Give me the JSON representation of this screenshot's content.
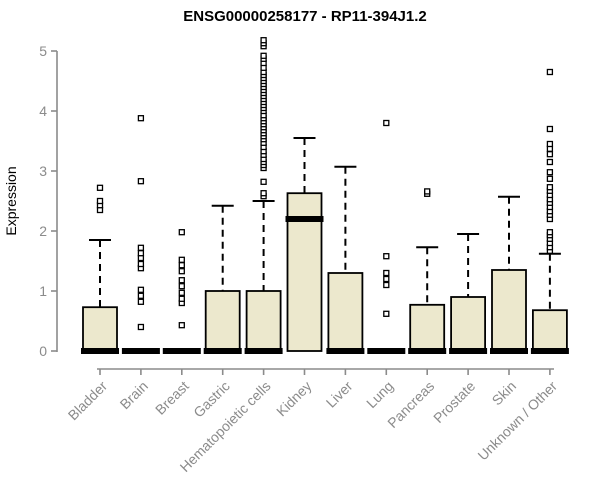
{
  "chart_data": {
    "type": "boxplot",
    "title": "ENSG00000258177 - RP11-394J1.2",
    "ylabel": "Expression",
    "xlabel": "",
    "ylim": [
      0,
      5
    ],
    "yticks": [
      0,
      1,
      2,
      3,
      4,
      5
    ],
    "grid": false,
    "legend": "none",
    "categories": [
      "Bladder",
      "Brain",
      "Breast",
      "Gastric",
      "Hematopoietic cells",
      "Kidney",
      "Liver",
      "Lung",
      "Pancreas",
      "Prostate",
      "Skin",
      "Unknown / Other"
    ],
    "series": [
      {
        "name": "Bladder",
        "q1": 0,
        "median": 0,
        "q3": 0.73,
        "whisker_low": 0,
        "whisker_high": 1.85,
        "outliers": [
          2.35,
          2.43,
          2.5,
          2.72
        ]
      },
      {
        "name": "Brain",
        "q1": 0,
        "median": 0,
        "q3": 0,
        "whisker_low": 0,
        "whisker_high": 0,
        "outliers": [
          0.4,
          0.82,
          0.92,
          1.02,
          1.38,
          1.45,
          1.55,
          1.63,
          1.72,
          2.83,
          3.88
        ]
      },
      {
        "name": "Breast",
        "q1": 0,
        "median": 0,
        "q3": 0,
        "whisker_low": 0,
        "whisker_high": 0,
        "outliers": [
          0.43,
          0.8,
          0.87,
          0.97,
          1.08,
          1.18,
          1.33,
          1.43,
          1.52,
          1.98
        ]
      },
      {
        "name": "Gastric",
        "q1": 0,
        "median": 0,
        "q3": 1.0,
        "whisker_low": 0,
        "whisker_high": 2.42,
        "outliers": []
      },
      {
        "name": "Hematopoietic cells",
        "q1": 0,
        "median": 0,
        "q3": 1.0,
        "whisker_low": 0,
        "whisker_high": 2.5,
        "outliers": [
          2.58,
          2.63,
          2.82,
          3.05,
          3.1,
          3.15,
          3.2,
          3.27,
          3.33,
          3.4,
          3.47,
          3.53,
          3.58,
          3.63,
          3.68,
          3.73,
          3.78,
          3.83,
          3.88,
          3.93,
          4.0,
          4.05,
          4.1,
          4.15,
          4.2,
          4.25,
          4.3,
          4.35,
          4.4,
          4.45,
          4.5,
          4.55,
          4.6,
          4.65,
          4.72,
          4.8,
          4.87,
          4.92,
          5.08,
          5.13,
          5.18
        ]
      },
      {
        "name": "Kidney",
        "q1": 0,
        "median": 2.2,
        "q3": 2.63,
        "whisker_low": 0,
        "whisker_high": 3.55,
        "outliers": []
      },
      {
        "name": "Liver",
        "q1": 0,
        "median": 0,
        "q3": 1.3,
        "whisker_low": 0,
        "whisker_high": 3.07,
        "outliers": []
      },
      {
        "name": "Lung",
        "q1": 0,
        "median": 0,
        "q3": 0,
        "whisker_low": 0,
        "whisker_high": 0,
        "outliers": [
          0.62,
          1.1,
          1.2,
          1.3,
          1.58,
          3.8
        ]
      },
      {
        "name": "Pancreas",
        "q1": 0,
        "median": 0,
        "q3": 0.77,
        "whisker_low": 0,
        "whisker_high": 1.73,
        "outliers": [
          2.62,
          2.66
        ]
      },
      {
        "name": "Prostate",
        "q1": 0,
        "median": 0,
        "q3": 0.9,
        "whisker_low": 0,
        "whisker_high": 1.95,
        "outliers": []
      },
      {
        "name": "Skin",
        "q1": 0,
        "median": 0,
        "q3": 1.35,
        "whisker_low": 0,
        "whisker_high": 2.57,
        "outliers": []
      },
      {
        "name": "Unknown / Other",
        "q1": 0,
        "median": 0,
        "q3": 0.68,
        "whisker_low": 0,
        "whisker_high": 1.62,
        "outliers": [
          1.67,
          1.73,
          1.8,
          1.87,
          1.93,
          1.98,
          2.2,
          2.27,
          2.33,
          2.4,
          2.47,
          2.53,
          2.6,
          2.67,
          2.73,
          2.87,
          2.98,
          3.15,
          3.28,
          3.37,
          3.45,
          3.7,
          4.65
        ]
      }
    ],
    "colors": {
      "box_fill": "#ece8cd",
      "box_border": "#000000",
      "median": "#000000",
      "whisker": "#000000",
      "outlier_border": "#000000",
      "outlier_fill": "#ffffff",
      "axis_line": "#8b8b8b",
      "tick_label": "#8b8b8b",
      "title": "#000000"
    }
  }
}
